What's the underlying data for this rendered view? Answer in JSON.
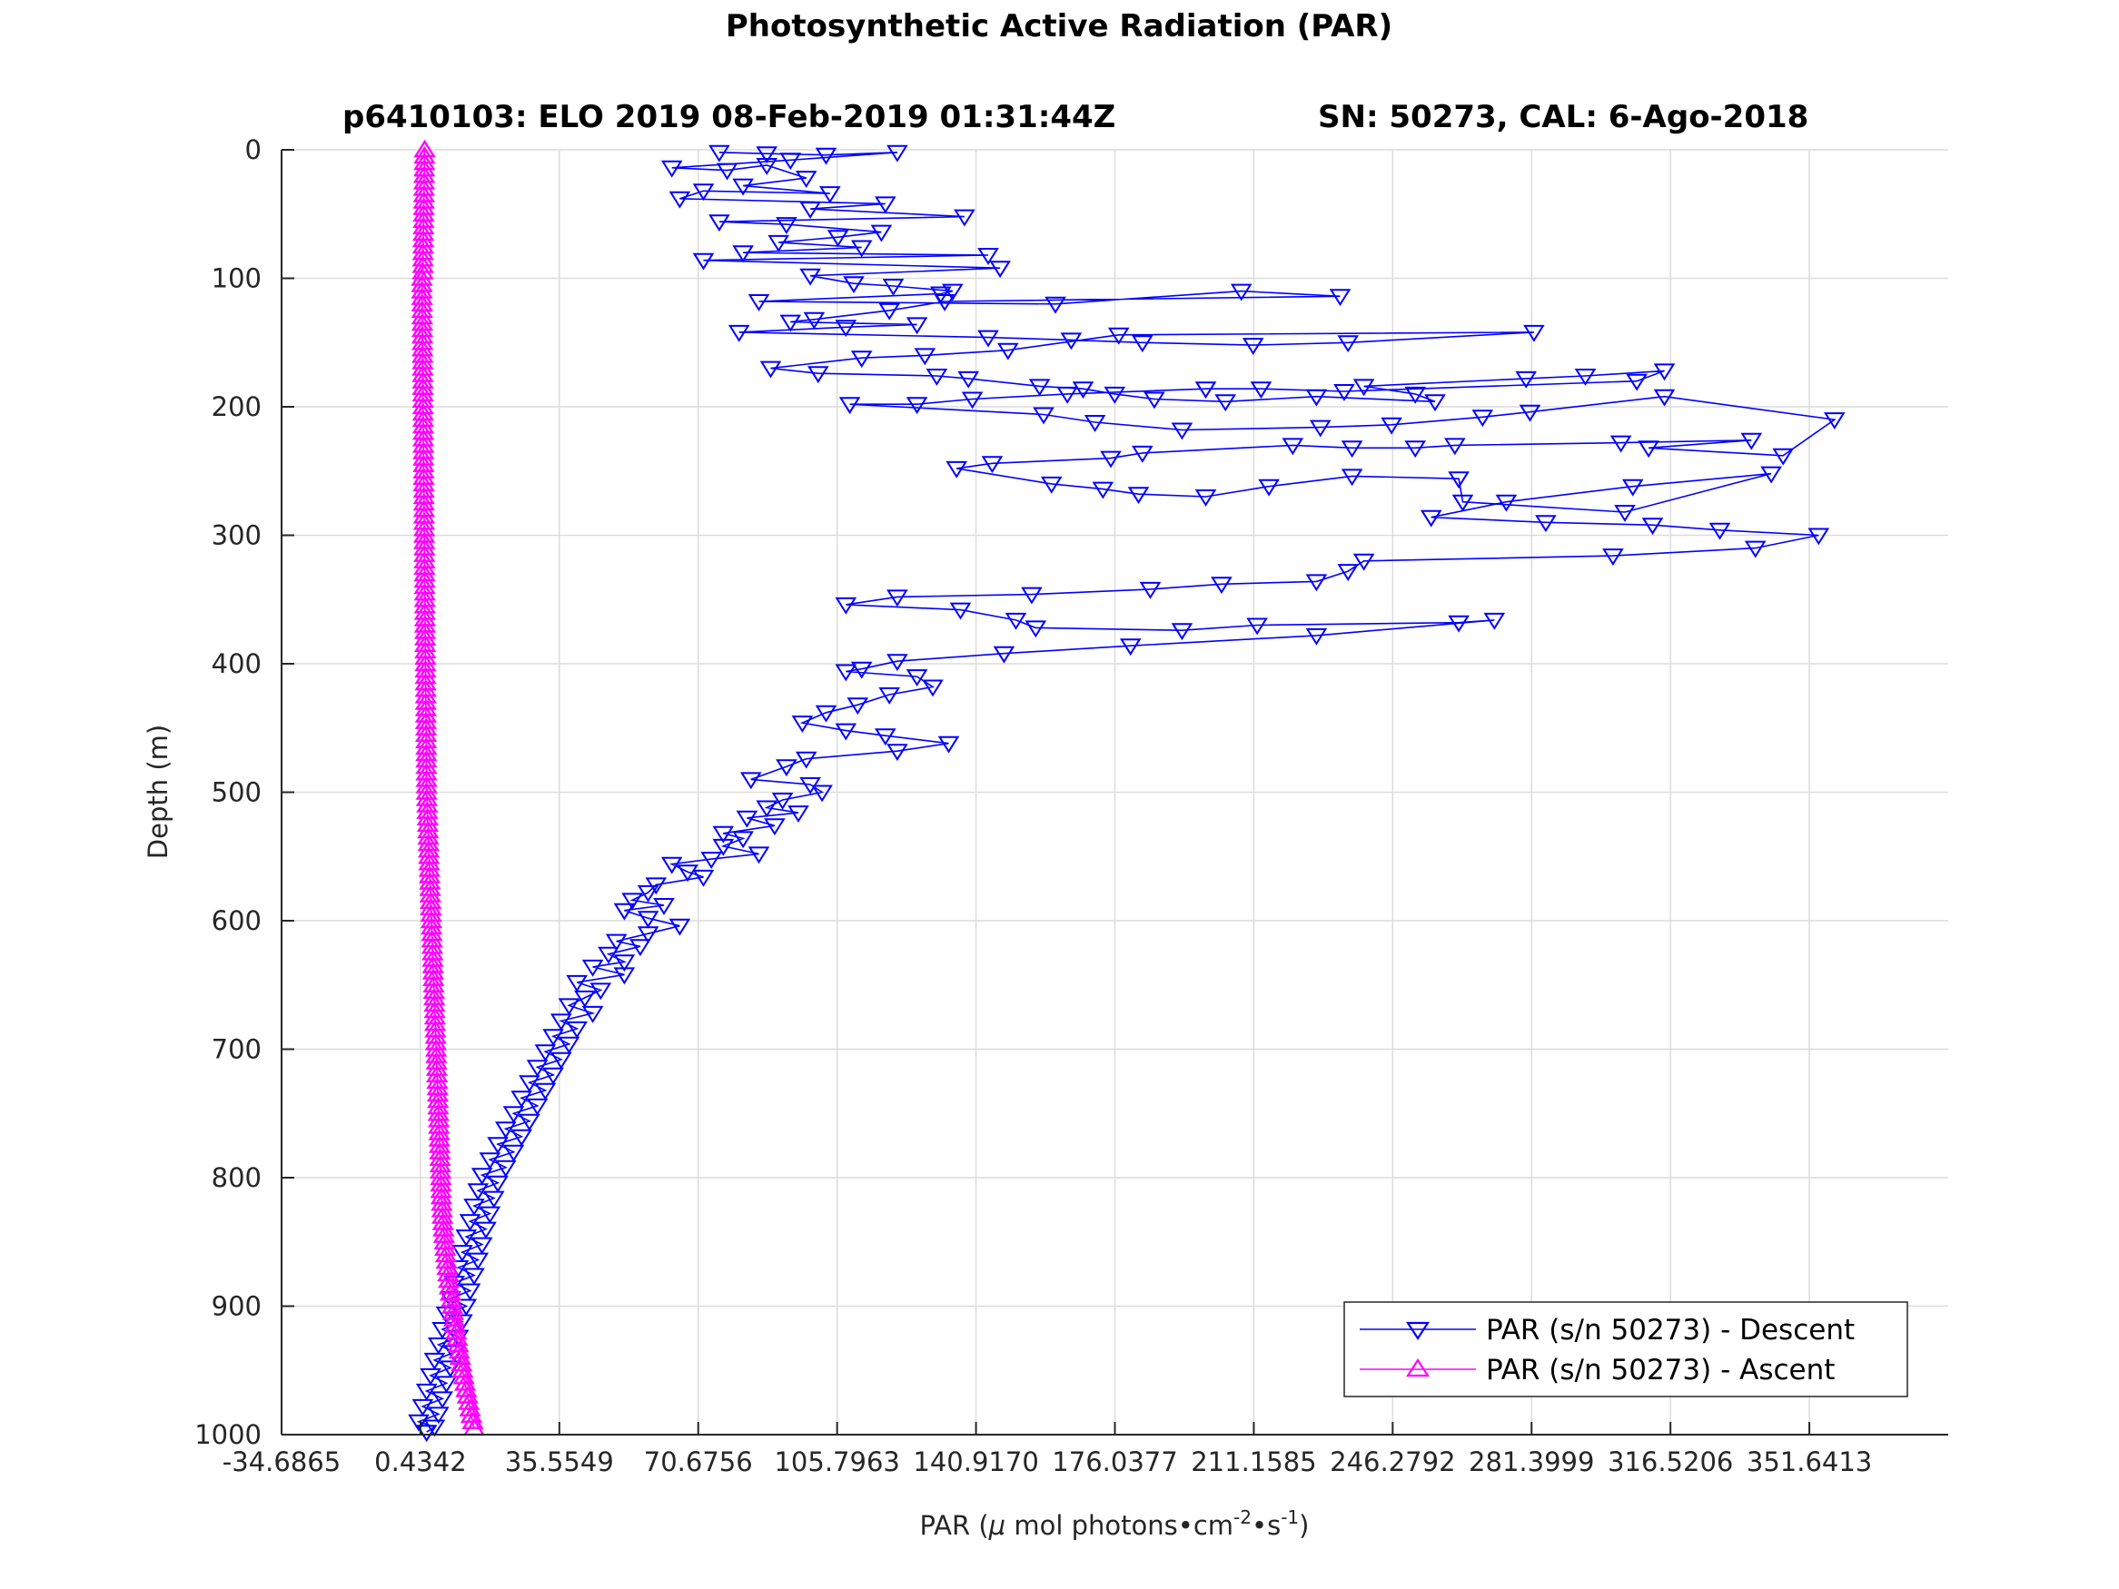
{
  "chart_data": {
    "type": "line",
    "title": "Photosynthetic Active Radiation (PAR)",
    "subtitle_left": "p6410103: ELO 2019 08-Feb-2019 01:31:44Z",
    "subtitle_right": "SN: 50273, CAL: 6-Ago-2018",
    "xlabel_main": "PAR (",
    "xlabel_mu": "μ",
    "xlabel_mid": " mol photons",
    "xlabel_dot1": "•",
    "xlabel_cm": "cm",
    "xlabel_exp1": "-2",
    "xlabel_dot2": "•",
    "xlabel_s": "s",
    "xlabel_exp2": "-1",
    "xlabel_close": ")",
    "ylabel": "Depth (m)",
    "xlim": [
      -34.6865,
      386.7634
    ],
    "ylim": [
      0,
      1000
    ],
    "y_reversed": true,
    "grid": true,
    "legend_position": "bottom-right",
    "xticks": [
      -34.6865,
      0.4342,
      35.5549,
      70.6756,
      105.7963,
      140.917,
      176.0377,
      211.1585,
      246.2792,
      281.3999,
      316.5206,
      351.6413
    ],
    "xtick_labels": [
      "-34.6865",
      "0.4342",
      "35.5549",
      "70.6756",
      "105.7963",
      "140.9170",
      "176.0377",
      "211.1585",
      "246.2792",
      "281.3999",
      "316.5206",
      "351.6413"
    ],
    "yticks": [
      0,
      100,
      200,
      300,
      400,
      500,
      600,
      700,
      800,
      900,
      1000
    ],
    "ytick_labels": [
      "0",
      "100",
      "200",
      "300",
      "400",
      "500",
      "600",
      "700",
      "800",
      "900",
      "1000"
    ],
    "series": [
      {
        "name": "PAR (s/n 50273) - Descent",
        "color": "#0000ff",
        "marker": "triangle-down",
        "points": [
          [
            76,
            2
          ],
          [
            88,
            3
          ],
          [
            103,
            4
          ],
          [
            121,
            2
          ],
          [
            94,
            8
          ],
          [
            64,
            14
          ],
          [
            78,
            16
          ],
          [
            88,
            12
          ],
          [
            98,
            22
          ],
          [
            82,
            28
          ],
          [
            104,
            34
          ],
          [
            72,
            32
          ],
          [
            66,
            38
          ],
          [
            118,
            42
          ],
          [
            99,
            46
          ],
          [
            138,
            52
          ],
          [
            76,
            56
          ],
          [
            93,
            58
          ],
          [
            117,
            64
          ],
          [
            106,
            68
          ],
          [
            91,
            72
          ],
          [
            112,
            76
          ],
          [
            82,
            80
          ],
          [
            144,
            82
          ],
          [
            72,
            86
          ],
          [
            147,
            92
          ],
          [
            99,
            98
          ],
          [
            110,
            104
          ],
          [
            120,
            106
          ],
          [
            135,
            110
          ],
          [
            132,
            112
          ],
          [
            86,
            118
          ],
          [
            161,
            120
          ],
          [
            208,
            110
          ],
          [
            233,
            114
          ],
          [
            133,
            118
          ],
          [
            119,
            125
          ],
          [
            100,
            132
          ],
          [
            94,
            134
          ],
          [
            126,
            136
          ],
          [
            108,
            138
          ],
          [
            81,
            142
          ],
          [
            144,
            146
          ],
          [
            165,
            148
          ],
          [
            183,
            150
          ],
          [
            211,
            152
          ],
          [
            235,
            150
          ],
          [
            282,
            142
          ],
          [
            177,
            144
          ],
          [
            149,
            156
          ],
          [
            128,
            160
          ],
          [
            112,
            162
          ],
          [
            89,
            170
          ],
          [
            101,
            174
          ],
          [
            131,
            176
          ],
          [
            139,
            178
          ],
          [
            157,
            184
          ],
          [
            168,
            186
          ],
          [
            176,
            190
          ],
          [
            186,
            194
          ],
          [
            204,
            196
          ],
          [
            227,
            192
          ],
          [
            257,
            196
          ],
          [
            252,
            190
          ],
          [
            239,
            184
          ],
          [
            280,
            178
          ],
          [
            295,
            176
          ],
          [
            315,
            172
          ],
          [
            308,
            180
          ],
          [
            234,
            188
          ],
          [
            213,
            186
          ],
          [
            199,
            186
          ],
          [
            164,
            190
          ],
          [
            140,
            194
          ],
          [
            126,
            198
          ],
          [
            109,
            198
          ],
          [
            158,
            206
          ],
          [
            171,
            212
          ],
          [
            193,
            218
          ],
          [
            228,
            216
          ],
          [
            246,
            214
          ],
          [
            269,
            208
          ],
          [
            281,
            204
          ],
          [
            315,
            192
          ],
          [
            358,
            210
          ],
          [
            345,
            238
          ],
          [
            311,
            232
          ],
          [
            337,
            226
          ],
          [
            304,
            228
          ],
          [
            262,
            230
          ],
          [
            252,
            232
          ],
          [
            236,
            232
          ],
          [
            221,
            230
          ],
          [
            183,
            236
          ],
          [
            175,
            240
          ],
          [
            145,
            244
          ],
          [
            136,
            248
          ],
          [
            160,
            260
          ],
          [
            173,
            264
          ],
          [
            182,
            268
          ],
          [
            199,
            270
          ],
          [
            215,
            262
          ],
          [
            236,
            254
          ],
          [
            263,
            256
          ],
          [
            264,
            274
          ],
          [
            305,
            282
          ],
          [
            342,
            252
          ],
          [
            307,
            262
          ],
          [
            275,
            274
          ],
          [
            256,
            286
          ],
          [
            285,
            290
          ],
          [
            312,
            292
          ],
          [
            329,
            296
          ],
          [
            354,
            300
          ],
          [
            338,
            310
          ],
          [
            302,
            316
          ],
          [
            239,
            320
          ],
          [
            235,
            328
          ],
          [
            227,
            336
          ],
          [
            203,
            338
          ],
          [
            185,
            342
          ],
          [
            155,
            346
          ],
          [
            121,
            348
          ],
          [
            108,
            354
          ],
          [
            137,
            358
          ],
          [
            151,
            366
          ],
          [
            156,
            372
          ],
          [
            193,
            374
          ],
          [
            212,
            370
          ],
          [
            263,
            368
          ],
          [
            272,
            366
          ],
          [
            227,
            378
          ],
          [
            180,
            386
          ],
          [
            148,
            392
          ],
          [
            121,
            398
          ],
          [
            112,
            404
          ],
          [
            108,
            406
          ],
          [
            126,
            410
          ],
          [
            130,
            418
          ],
          [
            119,
            424
          ],
          [
            111,
            432
          ],
          [
            103,
            438
          ],
          [
            97,
            446
          ],
          [
            108,
            452
          ],
          [
            118,
            456
          ],
          [
            134,
            462
          ],
          [
            121,
            468
          ],
          [
            98,
            474
          ],
          [
            93,
            480
          ],
          [
            84,
            490
          ],
          [
            99,
            494
          ],
          [
            102,
            500
          ],
          [
            92,
            506
          ],
          [
            88,
            512
          ],
          [
            96,
            516
          ],
          [
            83,
            520
          ],
          [
            90,
            526
          ],
          [
            77,
            532
          ],
          [
            82,
            536
          ],
          [
            77,
            542
          ],
          [
            86,
            548
          ],
          [
            74,
            552
          ],
          [
            64,
            556
          ],
          [
            68,
            562
          ],
          [
            72,
            566
          ],
          [
            60,
            572
          ],
          [
            58,
            578
          ],
          [
            54,
            584
          ],
          [
            62,
            588
          ],
          [
            52,
            592
          ],
          [
            58,
            598
          ],
          [
            66,
            604
          ],
          [
            58,
            610
          ],
          [
            50,
            616
          ],
          [
            56,
            620
          ],
          [
            48,
            626
          ],
          [
            52,
            632
          ],
          [
            44,
            636
          ],
          [
            52,
            642
          ],
          [
            40,
            648
          ],
          [
            46,
            654
          ],
          [
            42,
            660
          ],
          [
            38,
            666
          ],
          [
            44,
            672
          ],
          [
            36,
            678
          ],
          [
            40,
            684
          ],
          [
            34,
            690
          ],
          [
            38,
            696
          ],
          [
            32,
            702
          ],
          [
            36,
            708
          ],
          [
            30,
            714
          ],
          [
            34,
            720
          ],
          [
            28,
            726
          ],
          [
            32,
            732
          ],
          [
            26,
            738
          ],
          [
            30,
            744
          ],
          [
            24,
            750
          ],
          [
            28,
            756
          ],
          [
            22,
            762
          ],
          [
            26,
            768
          ],
          [
            20,
            774
          ],
          [
            24,
            780
          ],
          [
            18,
            786
          ],
          [
            22,
            792
          ],
          [
            16,
            798
          ],
          [
            20,
            804
          ],
          [
            15,
            810
          ],
          [
            19,
            816
          ],
          [
            14,
            822
          ],
          [
            18,
            828
          ],
          [
            13,
            834
          ],
          [
            17,
            840
          ],
          [
            12,
            846
          ],
          [
            16,
            852
          ],
          [
            11,
            858
          ],
          [
            15,
            864
          ],
          [
            10,
            870
          ],
          [
            14,
            876
          ],
          [
            9,
            882
          ],
          [
            13,
            888
          ],
          [
            8,
            894
          ],
          [
            12,
            900
          ],
          [
            7,
            906
          ],
          [
            11,
            912
          ],
          [
            6,
            918
          ],
          [
            10,
            924
          ],
          [
            5,
            930
          ],
          [
            9,
            936
          ],
          [
            4,
            942
          ],
          [
            8,
            948
          ],
          [
            3,
            954
          ],
          [
            7,
            960
          ],
          [
            2,
            966
          ],
          [
            6,
            972
          ],
          [
            1,
            978
          ],
          [
            5,
            984
          ],
          [
            0,
            990
          ],
          [
            4,
            994
          ],
          [
            2,
            998
          ]
        ]
      },
      {
        "name": "PAR (s/n 50273) - Ascent",
        "color": "#ff00ff",
        "marker": "triangle-up"
      }
    ]
  }
}
